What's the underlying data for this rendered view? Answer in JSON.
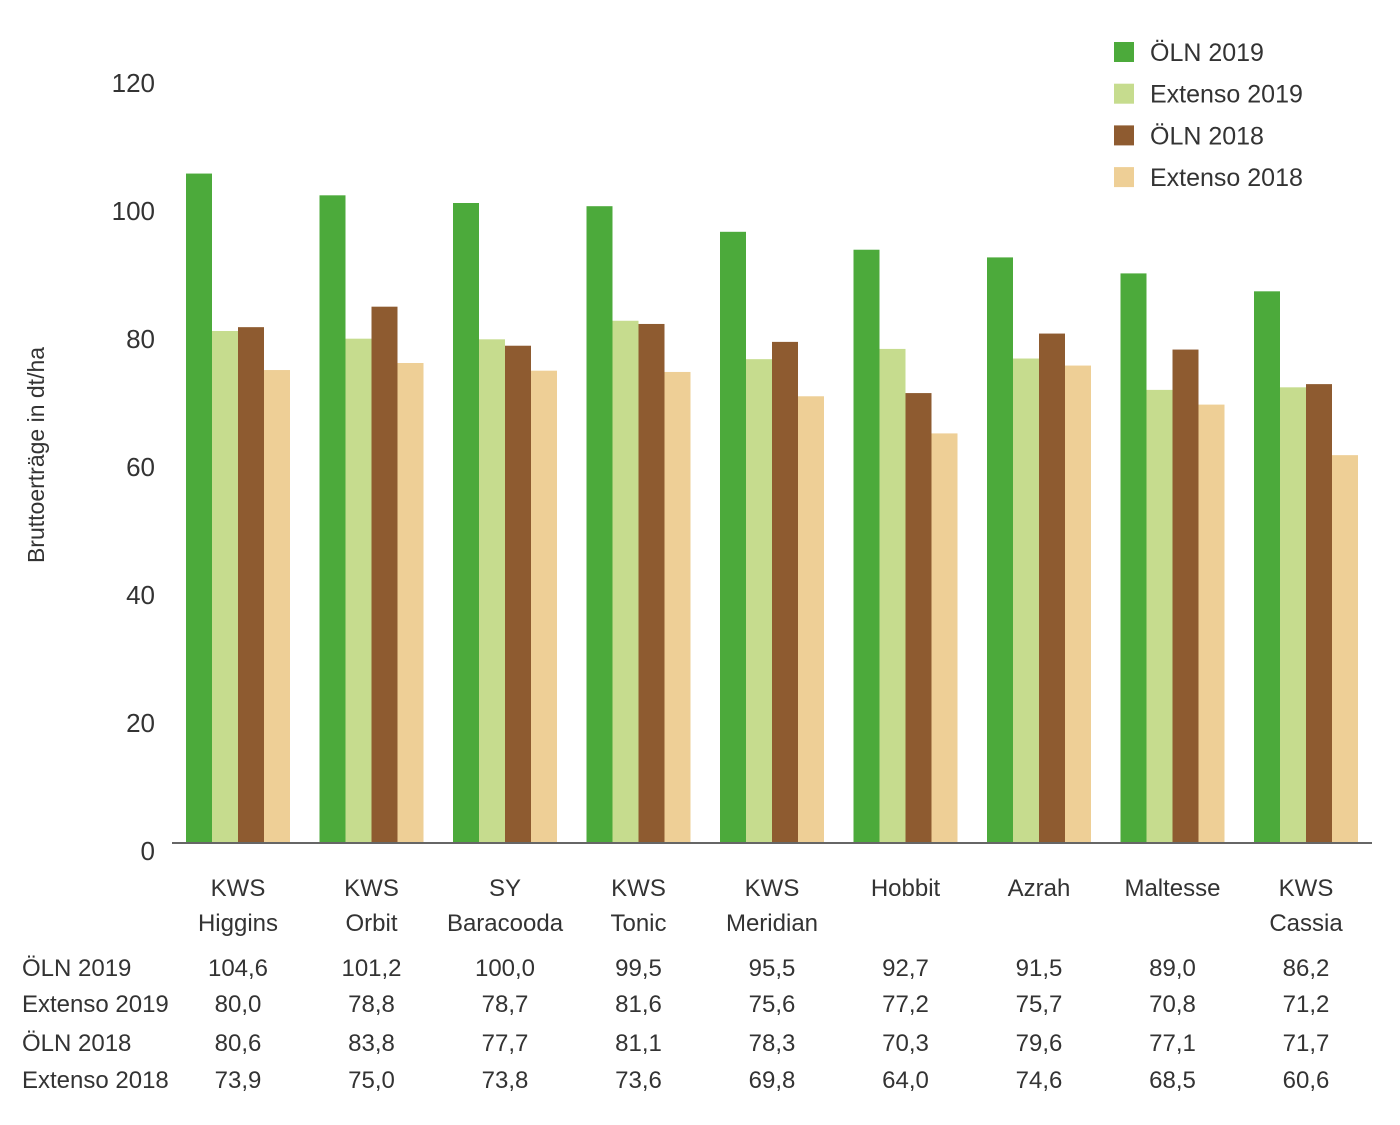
{
  "chart_data": {
    "type": "bar",
    "ylabel": "Bruttoerträge in dt/ha",
    "ylim": [
      0,
      120
    ],
    "yticks": [
      0,
      20,
      40,
      60,
      80,
      100,
      120
    ],
    "grid": false,
    "legend_position": "top-right",
    "categories": [
      [
        "KWS",
        "Higgins"
      ],
      [
        "KWS",
        "Orbit"
      ],
      [
        "SY",
        "Baracooda"
      ],
      [
        "KWS",
        "Tonic"
      ],
      [
        "KWS",
        "Meridian"
      ],
      [
        "Hobbit"
      ],
      [
        "Azrah"
      ],
      [
        "Maltesse"
      ],
      [
        "KWS",
        "Cassia"
      ]
    ],
    "series": [
      {
        "name": "ÖLN 2019",
        "color": "#4caa3b",
        "values": [
          104.6,
          101.2,
          100.0,
          99.5,
          95.5,
          92.7,
          91.5,
          89.0,
          86.2
        ],
        "labels": [
          "104,6",
          "101,2",
          "100,0",
          "99,5",
          "95,5",
          "92,7",
          "91,5",
          "89,0",
          "86,2"
        ]
      },
      {
        "name": "Extenso 2019",
        "color": "#c6dc8e",
        "values": [
          80.0,
          78.8,
          78.7,
          81.6,
          75.6,
          77.2,
          75.7,
          70.8,
          71.2
        ],
        "labels": [
          "80,0",
          "78,8",
          "78,7",
          "81,6",
          "75,6",
          "77,2",
          "75,7",
          "70,8",
          "71,2"
        ]
      },
      {
        "name": "ÖLN 2018",
        "color": "#8e5b30",
        "values": [
          80.6,
          83.8,
          77.7,
          81.1,
          78.3,
          70.3,
          79.6,
          77.1,
          71.7
        ],
        "labels": [
          "80,6",
          "83,8",
          "77,7",
          "81,1",
          "78,3",
          "70,3",
          "79,6",
          "77,1",
          "71,7"
        ]
      },
      {
        "name": "Extenso 2018",
        "color": "#eecf96",
        "values": [
          73.9,
          75.0,
          73.8,
          73.6,
          69.8,
          64.0,
          74.6,
          68.5,
          60.6
        ],
        "labels": [
          "73,9",
          "75,0",
          "73,8",
          "73,6",
          "69,8",
          "64,0",
          "74,6",
          "68,5",
          "60,6"
        ]
      }
    ]
  }
}
